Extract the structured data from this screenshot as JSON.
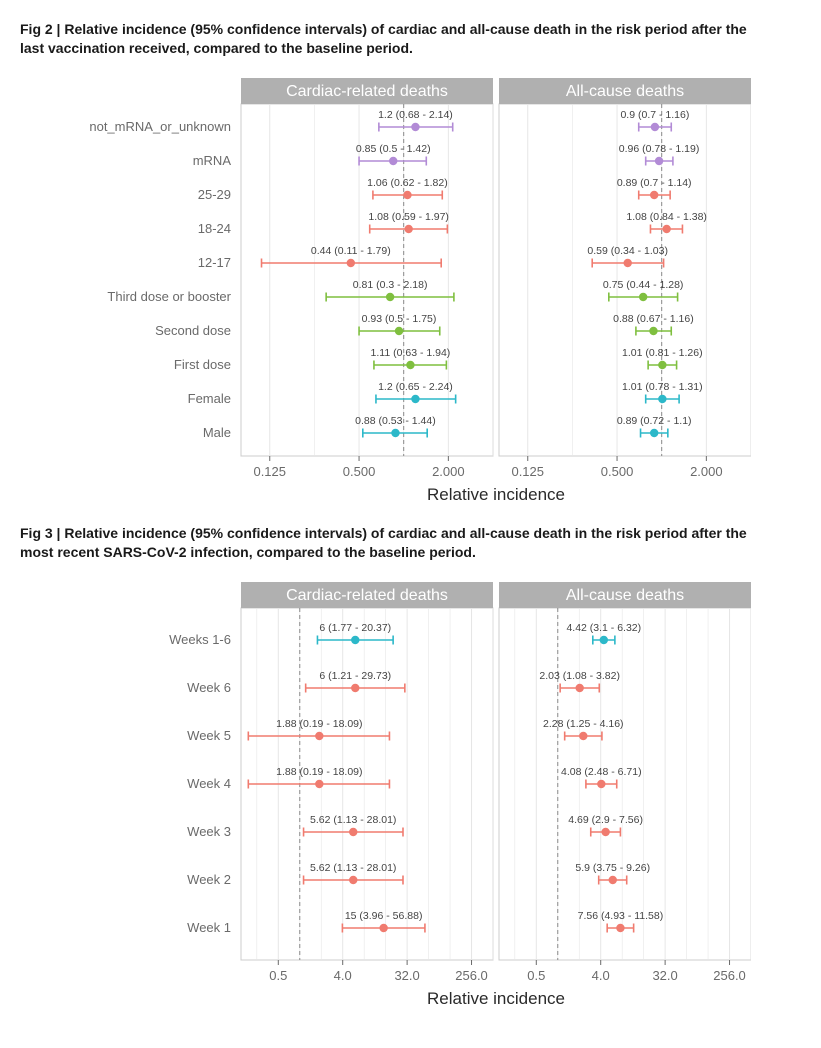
{
  "colors": {
    "panel_header_bg": "#b0b0b0",
    "panel_header_text": "#ffffff",
    "panel_bg": "#ffffff",
    "panel_border": "#cccccc",
    "grid_major": "#e6e6e6",
    "ref_line": "#888888",
    "axis_text": "#6a6a6a",
    "xlabel_text": "#2a2a2a",
    "point_label": "#444444",
    "series": {
      "sex": "#2cb8c9",
      "dose": "#7fbf3f",
      "age": "#f07b6f",
      "vaccine": "#b28bd6",
      "week": "#f07b6f",
      "weeks_all": "#2cb8c9"
    }
  },
  "typography": {
    "title_fontsize": 14,
    "header_fontsize": 16,
    "tick_fontsize": 13,
    "pointlabel_fontsize": 10.5,
    "xlabel_fontsize": 17
  },
  "fig2": {
    "title": "Fig 2 | Relative incidence (95% confidence intervals) of cardiac and all-cause death in the risk period after the last vaccination received, compared to the baseline period.",
    "xlabel": "Relative incidence",
    "x_scale": "log2",
    "x_range": [
      0.08,
      4.0
    ],
    "x_ticks": [
      0.125,
      0.5,
      2.0
    ],
    "ref_x": 1.0,
    "panels": [
      {
        "title": "Cardiac-related deaths"
      },
      {
        "title": "All-cause deaths"
      }
    ],
    "rows": [
      {
        "label": "not_mRNA_or_unknown",
        "color_key": "vaccine",
        "cardiac": {
          "est": 1.2,
          "lo": 0.68,
          "hi": 2.14
        },
        "allcause": {
          "est": 0.9,
          "lo": 0.7,
          "hi": 1.16
        }
      },
      {
        "label": "mRNA",
        "color_key": "vaccine",
        "cardiac": {
          "est": 0.85,
          "lo": 0.5,
          "hi": 1.42
        },
        "allcause": {
          "est": 0.96,
          "lo": 0.78,
          "hi": 1.19
        }
      },
      {
        "label": "25-29",
        "color_key": "age",
        "cardiac": {
          "est": 1.06,
          "lo": 0.62,
          "hi": 1.82
        },
        "allcause": {
          "est": 0.89,
          "lo": 0.7,
          "hi": 1.14
        }
      },
      {
        "label": "18-24",
        "color_key": "age",
        "cardiac": {
          "est": 1.08,
          "lo": 0.59,
          "hi": 1.97
        },
        "allcause": {
          "est": 1.08,
          "lo": 0.84,
          "hi": 1.38
        }
      },
      {
        "label": "12-17",
        "color_key": "age",
        "cardiac": {
          "est": 0.44,
          "lo": 0.11,
          "hi": 1.79
        },
        "allcause": {
          "est": 0.59,
          "lo": 0.34,
          "hi": 1.03
        }
      },
      {
        "label": "Third dose or booster",
        "color_key": "dose",
        "cardiac": {
          "est": 0.81,
          "lo": 0.3,
          "hi": 2.18
        },
        "allcause": {
          "est": 0.75,
          "lo": 0.44,
          "hi": 1.28
        }
      },
      {
        "label": "Second dose",
        "color_key": "dose",
        "cardiac": {
          "est": 0.93,
          "lo": 0.5,
          "hi": 1.75
        },
        "allcause": {
          "est": 0.88,
          "lo": 0.67,
          "hi": 1.16
        }
      },
      {
        "label": "First dose",
        "color_key": "dose",
        "cardiac": {
          "est": 1.11,
          "lo": 0.63,
          "hi": 1.94
        },
        "allcause": {
          "est": 1.01,
          "lo": 0.81,
          "hi": 1.26
        }
      },
      {
        "label": "Female",
        "color_key": "sex",
        "cardiac": {
          "est": 1.2,
          "lo": 0.65,
          "hi": 2.24
        },
        "allcause": {
          "est": 1.01,
          "lo": 0.78,
          "hi": 1.31
        }
      },
      {
        "label": "Male",
        "color_key": "sex",
        "cardiac": {
          "est": 0.88,
          "lo": 0.53,
          "hi": 1.44
        },
        "allcause": {
          "est": 0.89,
          "lo": 0.72,
          "hi": 1.1
        }
      }
    ]
  },
  "fig3": {
    "title": "Fig 3 | Relative incidence (95% confidence intervals) of cardiac and all-cause death in the risk period after the most recent SARS-CoV-2 infection, compared to the baseline period.",
    "xlabel": "Relative incidence",
    "x_scale": "log2",
    "x_range": [
      0.15,
      512.0
    ],
    "x_ticks": [
      0.5,
      4.0,
      32.0,
      256.0
    ],
    "ref_x": 1.0,
    "panels": [
      {
        "title": "Cardiac-related deaths"
      },
      {
        "title": "All-cause deaths"
      }
    ],
    "rows": [
      {
        "label": "Weeks 1-6",
        "color_key": "weeks_all",
        "cardiac": {
          "est": 6.0,
          "lo": 1.77,
          "hi": 20.37
        },
        "allcause": {
          "est": 4.42,
          "lo": 3.1,
          "hi": 6.32
        }
      },
      {
        "label": "Week 6",
        "color_key": "week",
        "cardiac": {
          "est": 6.0,
          "lo": 1.21,
          "hi": 29.73
        },
        "allcause": {
          "est": 2.03,
          "lo": 1.08,
          "hi": 3.82
        }
      },
      {
        "label": "Week 5",
        "color_key": "week",
        "cardiac": {
          "est": 1.88,
          "lo": 0.19,
          "hi": 18.09
        },
        "allcause": {
          "est": 2.28,
          "lo": 1.25,
          "hi": 4.16
        }
      },
      {
        "label": "Week 4",
        "color_key": "week",
        "cardiac": {
          "est": 1.88,
          "lo": 0.19,
          "hi": 18.09
        },
        "allcause": {
          "est": 4.08,
          "lo": 2.48,
          "hi": 6.71
        }
      },
      {
        "label": "Week 3",
        "color_key": "week",
        "cardiac": {
          "est": 5.62,
          "lo": 1.13,
          "hi": 28.01
        },
        "allcause": {
          "est": 4.69,
          "lo": 2.9,
          "hi": 7.56
        }
      },
      {
        "label": "Week 2",
        "color_key": "week",
        "cardiac": {
          "est": 5.62,
          "lo": 1.13,
          "hi": 28.01
        },
        "allcause": {
          "est": 5.9,
          "lo": 3.75,
          "hi": 9.26
        }
      },
      {
        "label": "Week 1",
        "color_key": "week",
        "cardiac": {
          "est": 15.0,
          "lo": 3.96,
          "hi": 56.88
        },
        "allcause": {
          "est": 7.56,
          "lo": 4.93,
          "hi": 11.58
        }
      }
    ]
  }
}
